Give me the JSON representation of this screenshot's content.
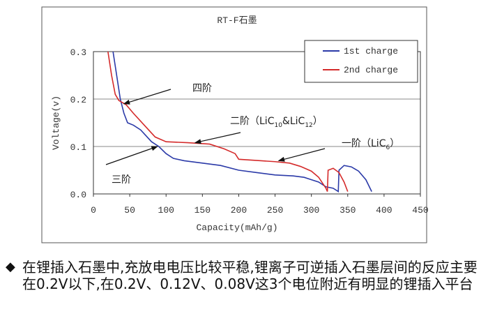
{
  "chart_data": {
    "type": "line",
    "title": "RT-F石墨",
    "xlabel": "Capacity(mAh/g)",
    "ylabel": "Voltage(v)",
    "xlim": [
      0,
      450
    ],
    "ylim": [
      0,
      0.3
    ],
    "x_ticks": [
      "0",
      "50",
      "100",
      "150",
      "200",
      "250",
      "300",
      "350",
      "400",
      "450"
    ],
    "y_ticks": [
      "0.0",
      "0.1",
      "0.2",
      "0.3"
    ],
    "grid": "horizontal",
    "legend_position": "top-right",
    "series": [
      {
        "name": "1st charge",
        "color": "#2b3aa8",
        "points": [
          [
            27,
            0.3
          ],
          [
            32,
            0.25
          ],
          [
            37,
            0.2
          ],
          [
            42,
            0.17
          ],
          [
            47,
            0.15
          ],
          [
            55,
            0.145
          ],
          [
            65,
            0.135
          ],
          [
            80,
            0.11
          ],
          [
            90,
            0.1
          ],
          [
            100,
            0.085
          ],
          [
            110,
            0.075
          ],
          [
            125,
            0.07
          ],
          [
            150,
            0.065
          ],
          [
            175,
            0.06
          ],
          [
            200,
            0.05
          ],
          [
            225,
            0.045
          ],
          [
            250,
            0.04
          ],
          [
            275,
            0.038
          ],
          [
            290,
            0.035
          ],
          [
            300,
            0.03
          ],
          [
            310,
            0.025
          ],
          [
            320,
            0.015
          ],
          [
            330,
            0.012
          ],
          [
            337,
            0.005
          ],
          [
            338,
            0.05
          ],
          [
            345,
            0.06
          ],
          [
            355,
            0.057
          ],
          [
            365,
            0.048
          ],
          [
            375,
            0.03
          ],
          [
            383,
            0.005
          ]
        ]
      },
      {
        "name": "2nd charge",
        "color": "#d42a2a",
        "points": [
          [
            20,
            0.3
          ],
          [
            25,
            0.25
          ],
          [
            30,
            0.21
          ],
          [
            35,
            0.197
          ],
          [
            45,
            0.188
          ],
          [
            55,
            0.17
          ],
          [
            70,
            0.145
          ],
          [
            85,
            0.12
          ],
          [
            100,
            0.11
          ],
          [
            130,
            0.108
          ],
          [
            160,
            0.105
          ],
          [
            180,
            0.095
          ],
          [
            195,
            0.085
          ],
          [
            200,
            0.073
          ],
          [
            220,
            0.071
          ],
          [
            250,
            0.068
          ],
          [
            270,
            0.065
          ],
          [
            285,
            0.058
          ],
          [
            300,
            0.048
          ],
          [
            310,
            0.035
          ],
          [
            320,
            0.012
          ],
          [
            322,
            0.005
          ],
          [
            323,
            0.05
          ],
          [
            330,
            0.054
          ],
          [
            338,
            0.045
          ],
          [
            345,
            0.025
          ],
          [
            350,
            0.005
          ]
        ]
      }
    ],
    "annotations": [
      {
        "text": "四阶",
        "target": [
          42,
          0.19
        ]
      },
      {
        "text": "二阶（LiC",
        "sub1": "10",
        "mid": "&LiC",
        "sub2": "12",
        "end": "）",
        "target": [
          140,
          0.108
        ]
      },
      {
        "text": "三阶",
        "target": [
          88,
          0.1
        ]
      },
      {
        "text": "一阶（LiC",
        "sub1": "6",
        "end": "）",
        "target": [
          255,
          0.07
        ]
      }
    ]
  },
  "caption": {
    "bullet": "◆",
    "text": "在锂插入石墨中,充放电电压比较平稳,锂离子可逆插入石墨层间的反应主要在0.2V以下,在0.2V、0.12V、0.08V这3个电位附近有明显的锂插入平台"
  }
}
